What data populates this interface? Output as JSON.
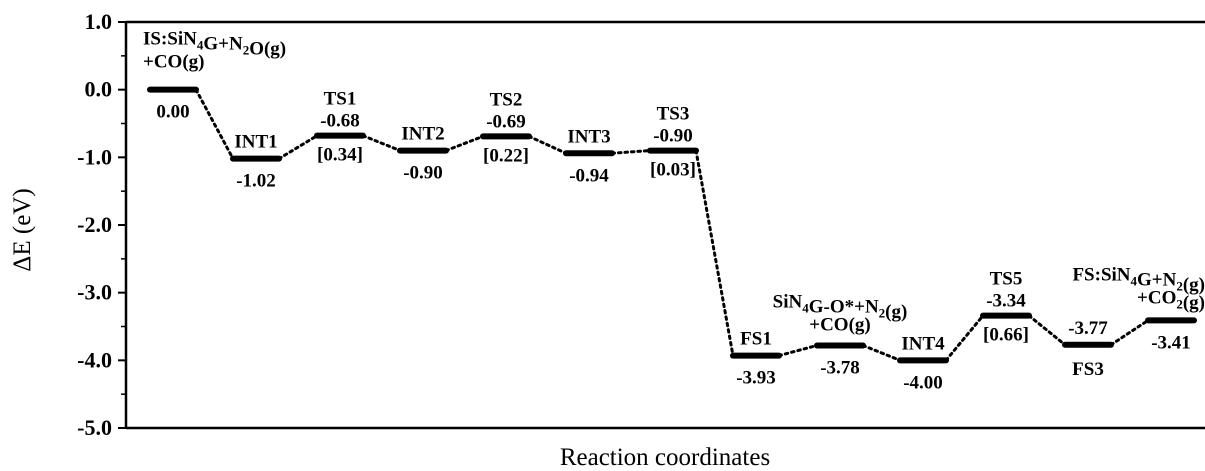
{
  "chart_data": {
    "type": "line",
    "xlabel": "Reaction coordinates",
    "ylabel": "ΔE (eV)",
    "ylim": [
      -5.0,
      1.0
    ],
    "yticks": [
      "1.0",
      "0.0",
      "-1.0",
      "-2.0",
      "-3.0",
      "-4.0",
      "-5.0"
    ],
    "grid": false,
    "series": [
      {
        "values": [
          0.0,
          -1.02,
          -0.68,
          -0.9,
          -0.69,
          -0.94,
          -0.9,
          -3.93,
          -3.78,
          -4.0,
          -3.34,
          -3.77,
          -3.41
        ]
      }
    ],
    "states": [
      {
        "label": "IS:SiN4G+N2O(g)",
        "label2": "+CO(g)",
        "value_label": "0.00"
      },
      {
        "label": "INT1",
        "value_label": "-1.02"
      },
      {
        "label": "TS1",
        "value_label": "-0.68",
        "barrier": "[0.34]"
      },
      {
        "label": "INT2",
        "value_label": "-0.90"
      },
      {
        "label": "TS2",
        "value_label": "-0.69",
        "barrier": "[0.22]"
      },
      {
        "label": "INT3",
        "value_label": "-0.94"
      },
      {
        "label": "TS3",
        "value_label": "-0.90",
        "barrier": "[0.03]"
      },
      {
        "label": "FS1",
        "value_label": "-3.93"
      },
      {
        "label": "SiN4G-O*+N2(g)",
        "label2": "+CO(g)",
        "value_label": "-3.78"
      },
      {
        "label": "INT4",
        "value_label": "-4.00"
      },
      {
        "label": "TS5",
        "value_label": "-3.34",
        "barrier": "[0.66]"
      },
      {
        "label": "FS3",
        "value_label": "-3.77"
      },
      {
        "label": "FS:SiN4G+N2(g)",
        "label2": "+CO2(g)",
        "value_label": "-3.41"
      }
    ]
  }
}
